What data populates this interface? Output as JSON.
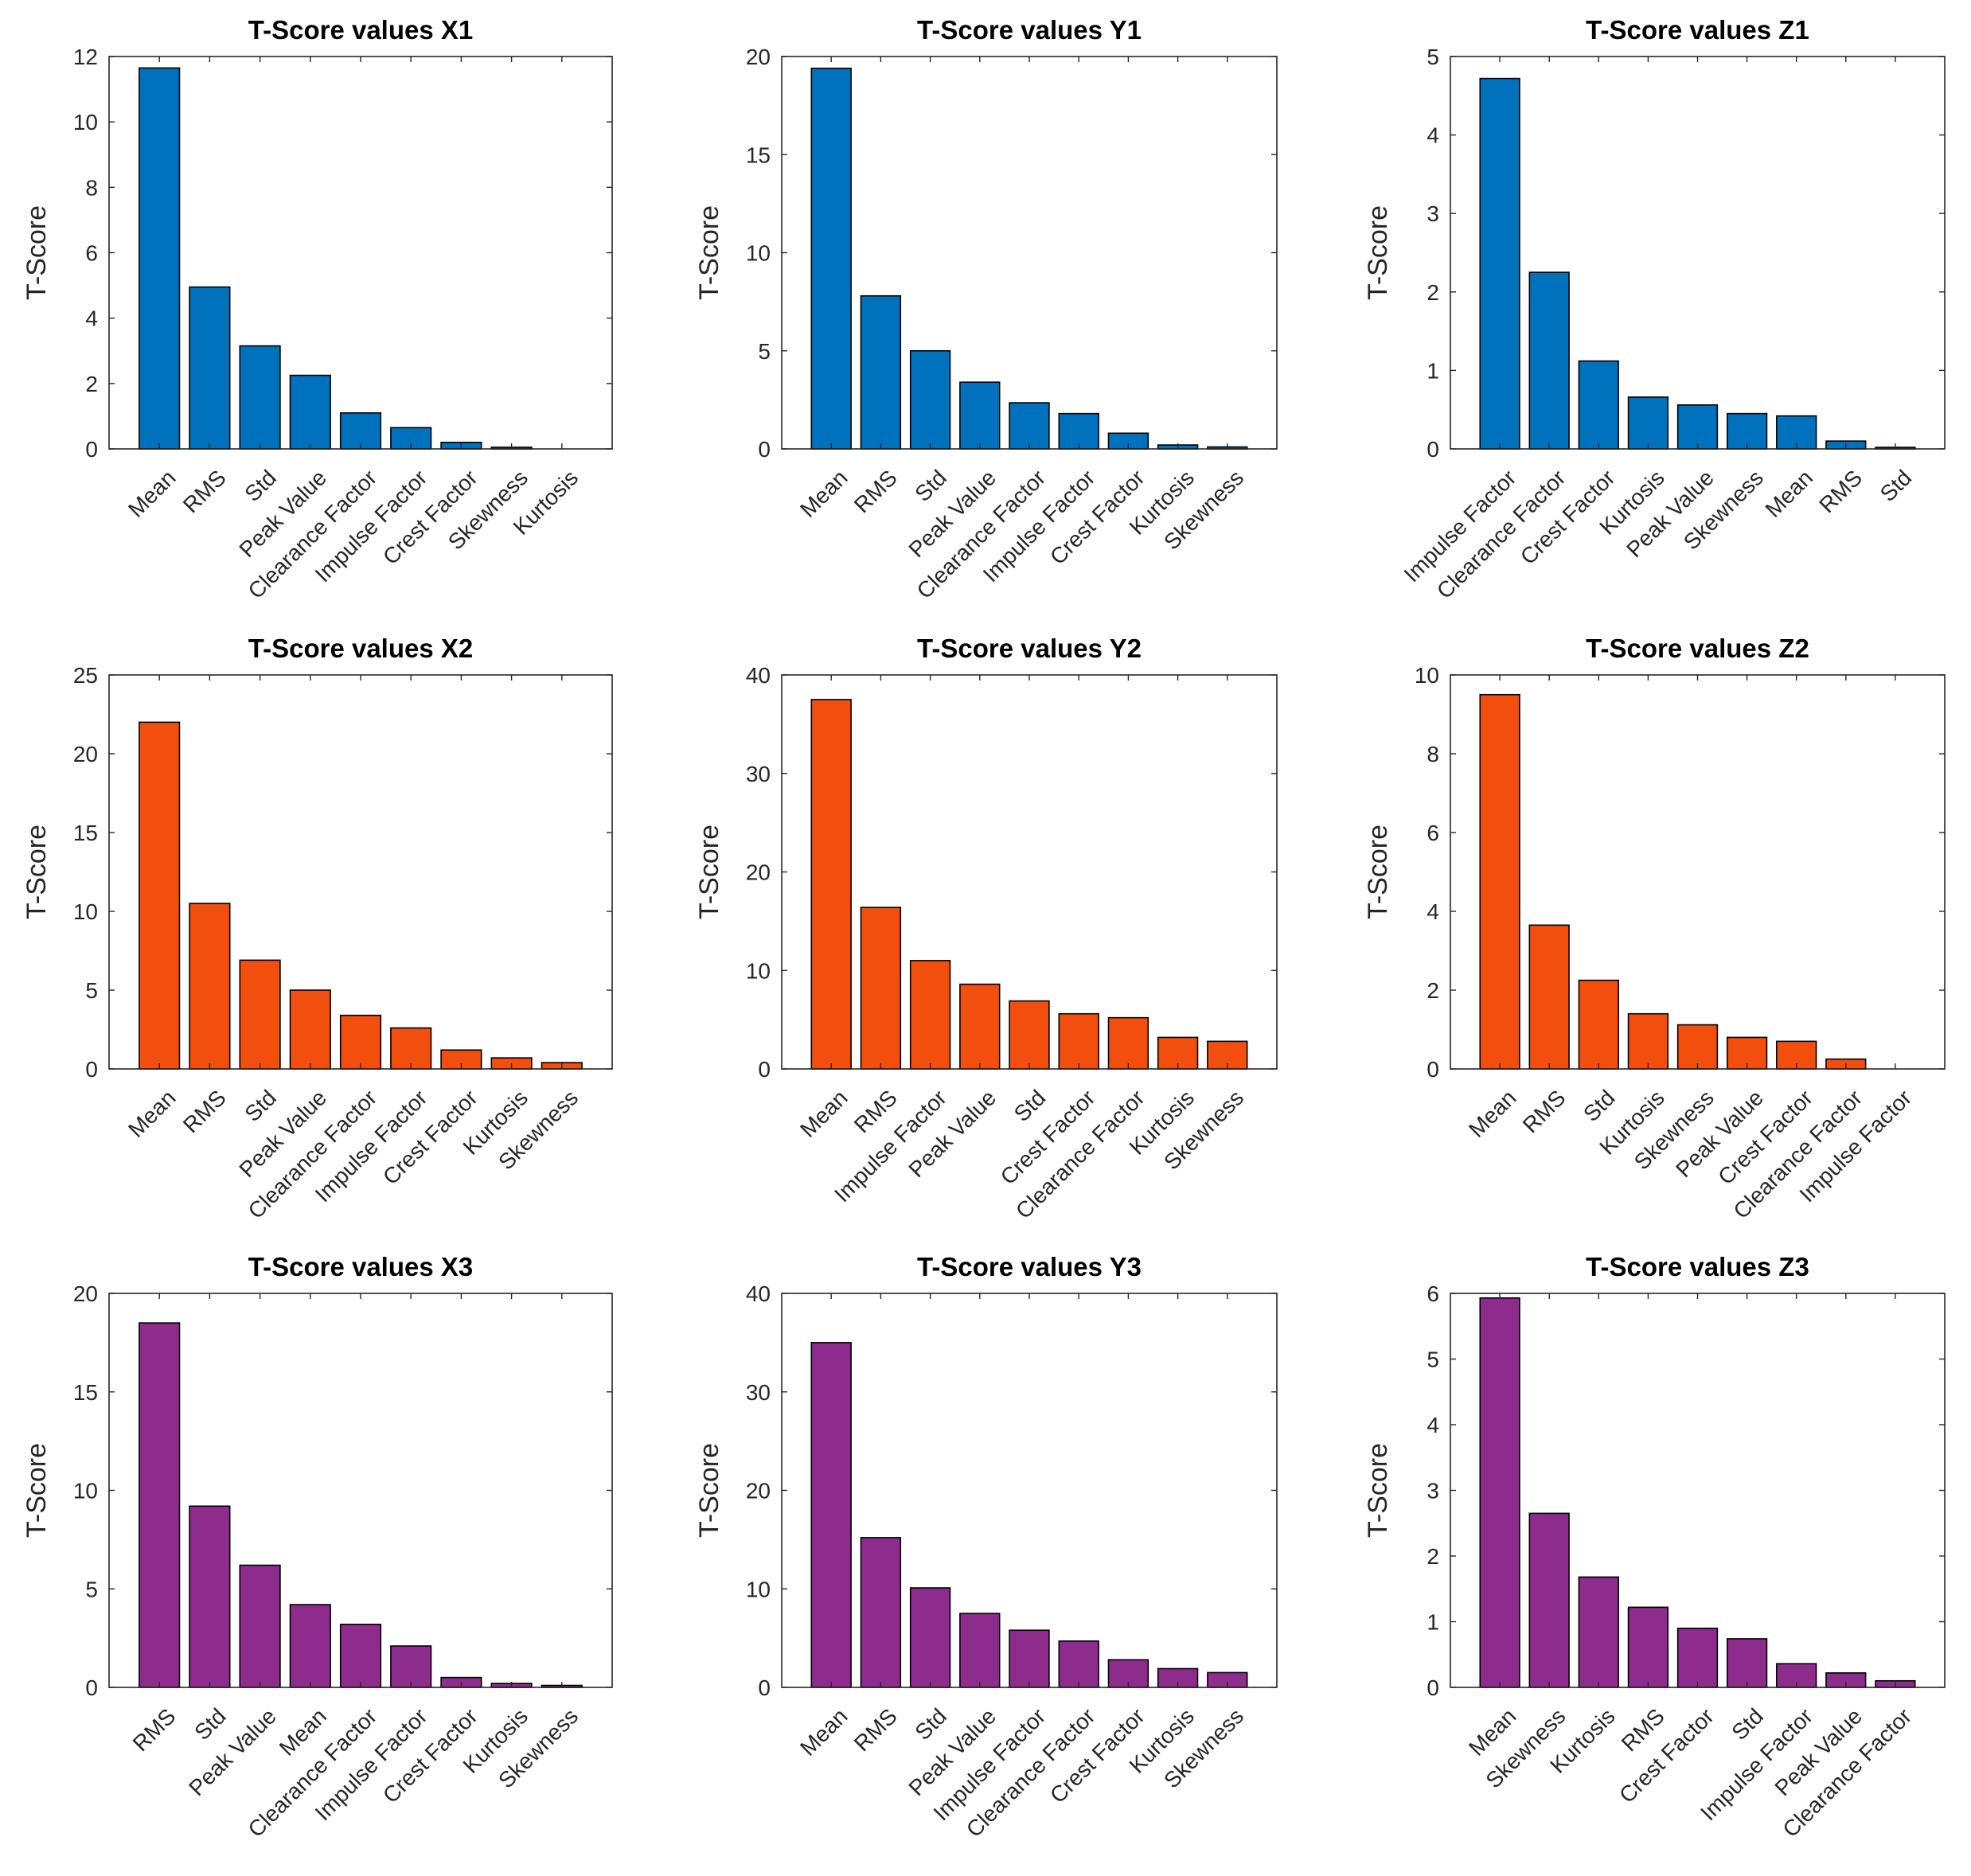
{
  "figure_colors": {
    "blue": "#0072BD",
    "orange": "#F24E0E",
    "purple": "#8E2C8E"
  },
  "chart_data": [
    {
      "type": "bar",
      "title": "T-Score values X1",
      "ylabel": "T-Score",
      "xlabel": "",
      "ylim": [
        0,
        12
      ],
      "yticks": [
        0,
        2,
        4,
        6,
        8,
        10,
        12
      ],
      "color": "#0072BD",
      "categories": [
        "Mean",
        "RMS",
        "Std",
        "Peak Value",
        "Clearance Factor",
        "Impulse Factor",
        "Crest Factor",
        "Skewness",
        "Kurtosis"
      ],
      "values": [
        11.65,
        4.95,
        3.15,
        2.25,
        1.1,
        0.65,
        0.2,
        0.05,
        0.0
      ]
    },
    {
      "type": "bar",
      "title": "T-Score values Y1",
      "ylabel": "T-Score",
      "xlabel": "",
      "ylim": [
        0,
        20
      ],
      "yticks": [
        0,
        5,
        10,
        15,
        20
      ],
      "color": "#0072BD",
      "categories": [
        "Mean",
        "RMS",
        "Std",
        "Peak Value",
        "Clearance Factor",
        "Impulse Factor",
        "Crest Factor",
        "Kurtosis",
        "Skewness"
      ],
      "values": [
        19.4,
        7.8,
        5.0,
        3.4,
        2.35,
        1.8,
        0.8,
        0.2,
        0.1
      ]
    },
    {
      "type": "bar",
      "title": "T-Score values Z1",
      "ylabel": "T-Score",
      "xlabel": "",
      "ylim": [
        0,
        5
      ],
      "yticks": [
        0,
        1,
        2,
        3,
        4,
        5
      ],
      "color": "#0072BD",
      "categories": [
        "Impulse Factor",
        "Clearance Factor",
        "Crest Factor",
        "Kurtosis",
        "Peak Value",
        "Skewness",
        "Mean",
        "RMS",
        "Std"
      ],
      "values": [
        4.72,
        2.25,
        1.12,
        0.66,
        0.56,
        0.45,
        0.42,
        0.1,
        0.02
      ]
    },
    {
      "type": "bar",
      "title": "T-Score values X2",
      "ylabel": "T-Score",
      "xlabel": "",
      "ylim": [
        0,
        25
      ],
      "yticks": [
        0,
        5,
        10,
        15,
        20,
        25
      ],
      "color": "#F24E0E",
      "categories": [
        "Mean",
        "RMS",
        "Std",
        "Peak Value",
        "Clearance Factor",
        "Impulse Factor",
        "Crest Factor",
        "Kurtosis",
        "Skewness"
      ],
      "values": [
        22.0,
        10.5,
        6.9,
        5.0,
        3.4,
        2.6,
        1.2,
        0.7,
        0.4
      ]
    },
    {
      "type": "bar",
      "title": "T-Score values Y2",
      "ylabel": "T-Score",
      "xlabel": "",
      "ylim": [
        0,
        40
      ],
      "yticks": [
        0,
        10,
        20,
        30,
        40
      ],
      "color": "#F24E0E",
      "categories": [
        "Mean",
        "RMS",
        "Impulse Factor",
        "Peak Value",
        "Std",
        "Crest Factor",
        "Clearance Factor",
        "Kurtosis",
        "Skewness"
      ],
      "values": [
        37.5,
        16.4,
        11.0,
        8.6,
        6.9,
        5.6,
        5.2,
        3.2,
        2.8
      ]
    },
    {
      "type": "bar",
      "title": "T-Score values Z2",
      "ylabel": "T-Score",
      "xlabel": "",
      "ylim": [
        0,
        10
      ],
      "yticks": [
        0,
        2,
        4,
        6,
        8,
        10
      ],
      "color": "#F24E0E",
      "categories": [
        "Mean",
        "RMS",
        "Std",
        "Kurtosis",
        "Skewness",
        "Peak Value",
        "Crest Factor",
        "Clearance Factor",
        "Impulse Factor"
      ],
      "values": [
        9.5,
        3.65,
        2.25,
        1.4,
        1.12,
        0.8,
        0.7,
        0.25,
        0.0
      ]
    },
    {
      "type": "bar",
      "title": "T-Score values X3",
      "ylabel": "T-Score",
      "xlabel": "",
      "ylim": [
        0,
        20
      ],
      "yticks": [
        0,
        5,
        10,
        15,
        20
      ],
      "color": "#8E2C8E",
      "categories": [
        "RMS",
        "Std",
        "Peak Value",
        "Mean",
        "Clearance Factor",
        "Impulse Factor",
        "Crest Factor",
        "Kurtosis",
        "Skewness"
      ],
      "values": [
        18.5,
        9.2,
        6.2,
        4.2,
        3.2,
        2.1,
        0.5,
        0.2,
        0.1
      ]
    },
    {
      "type": "bar",
      "title": "T-Score values Y3",
      "ylabel": "T-Score",
      "xlabel": "",
      "ylim": [
        0,
        40
      ],
      "yticks": [
        0,
        10,
        20,
        30,
        40
      ],
      "color": "#8E2C8E",
      "categories": [
        "Mean",
        "RMS",
        "Std",
        "Peak Value",
        "Impulse Factor",
        "Clearance Factor",
        "Crest Factor",
        "Kurtosis",
        "Skewness"
      ],
      "values": [
        35.0,
        15.2,
        10.1,
        7.5,
        5.8,
        4.7,
        2.8,
        1.9,
        1.5
      ]
    },
    {
      "type": "bar",
      "title": "T-Score values Z3",
      "ylabel": "T-Score",
      "xlabel": "",
      "ylim": [
        0,
        6
      ],
      "yticks": [
        0,
        1,
        2,
        3,
        4,
        5,
        6
      ],
      "color": "#8E2C8E",
      "categories": [
        "Mean",
        "Skewness",
        "Kurtosis",
        "RMS",
        "Crest Factor",
        "Std",
        "Impulse Factor",
        "Peak Value",
        "Clearance Factor"
      ],
      "values": [
        5.93,
        2.65,
        1.68,
        1.22,
        0.9,
        0.74,
        0.36,
        0.22,
        0.1
      ]
    }
  ]
}
